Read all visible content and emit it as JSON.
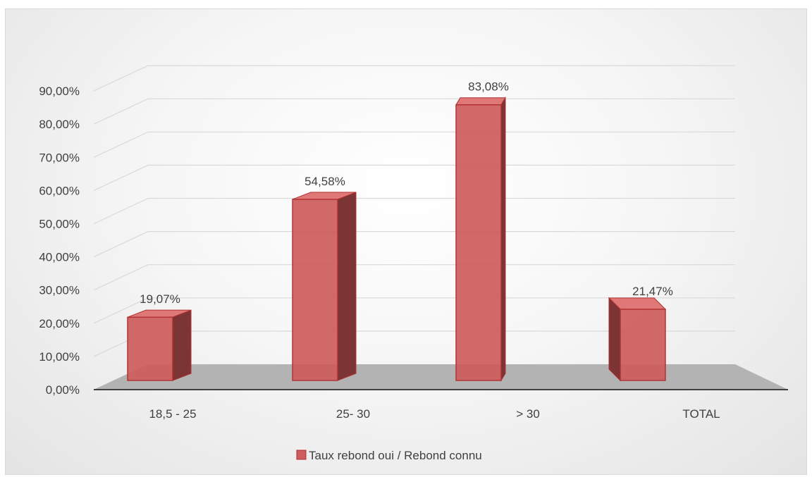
{
  "chart_data": {
    "type": "bar",
    "categories": [
      "18,5 - 25",
      "25- 30",
      "> 30",
      "TOTAL"
    ],
    "series": [
      {
        "name": "Taux rebond oui / Rebond connu",
        "values": [
          19.07,
          54.58,
          83.08,
          21.47
        ],
        "labels": [
          "19,07%",
          "54,58%",
          "83,08%",
          "21,47%"
        ]
      }
    ],
    "y_ticks": [
      "0,00%",
      "10,00%",
      "20,00%",
      "30,00%",
      "40,00%",
      "50,00%",
      "60,00%",
      "70,00%",
      "80,00%",
      "90,00%"
    ],
    "ylim": [
      0,
      90
    ],
    "grid": true,
    "legend_position": "bottom",
    "style": "3d-column",
    "colors": {
      "bar_front": "#cd5c5c",
      "bar_top": "#e07878",
      "bar_side": "#7d3434",
      "bar_stroke": "#b03030",
      "floor": "#b3b3b3",
      "grid": "#d9d9d9",
      "axis": "#404040"
    }
  }
}
